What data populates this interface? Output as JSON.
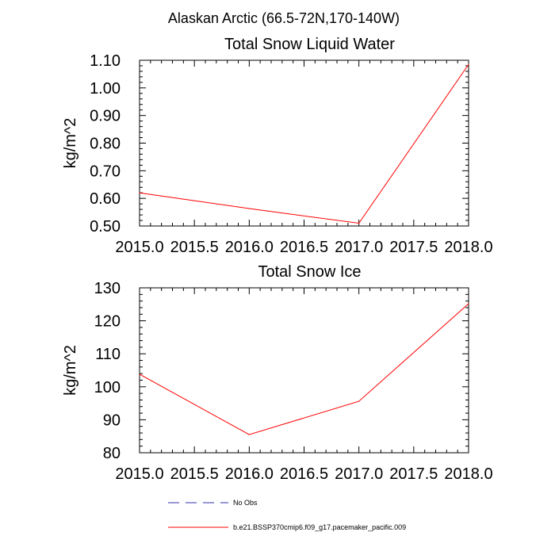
{
  "figure": {
    "suptitle": "Alaskan Arctic (66.5-72N,170-140W)"
  },
  "chart_data": [
    {
      "type": "line",
      "title": "Total Snow Liquid Water",
      "xlabel": "",
      "ylabel": "kg/m^2",
      "xlim": [
        2015.0,
        2018.0
      ],
      "ylim": [
        0.5,
        1.1
      ],
      "xticks": [
        "2015.0",
        "2015.5",
        "2016.0",
        "2016.5",
        "2017.0",
        "2017.5",
        "2018.0"
      ],
      "yticks": [
        "0.50",
        "0.60",
        "0.70",
        "0.80",
        "0.90",
        "1.00",
        "1.10"
      ],
      "x": [
        2015.0,
        2016.0,
        2017.0,
        2018.0
      ],
      "series": [
        {
          "name": "b.e21.BSSP370cmip6.f09_g17.pacemaker_pacific.009",
          "color": "#ff0000",
          "values": [
            0.62,
            0.563,
            0.51,
            1.085
          ]
        }
      ]
    },
    {
      "type": "line",
      "title": "Total Snow Ice",
      "xlabel": "",
      "ylabel": "kg/m^2",
      "xlim": [
        2015.0,
        2018.0
      ],
      "ylim": [
        80,
        130
      ],
      "xticks": [
        "2015.0",
        "2015.5",
        "2016.0",
        "2016.5",
        "2017.0",
        "2017.5",
        "2018.0"
      ],
      "yticks": [
        "80",
        "90",
        "100",
        "110",
        "120",
        "130"
      ],
      "x": [
        2015.0,
        2016.0,
        2017.0,
        2018.0
      ],
      "series": [
        {
          "name": "b.e21.BSSP370cmip6.f09_g17.pacemaker_pacific.009",
          "color": "#ff0000",
          "values": [
            103.8,
            85.5,
            95.6,
            125.2
          ]
        }
      ]
    }
  ],
  "legend": {
    "items": [
      {
        "label": "No Obs",
        "color": "#3333aa",
        "style": "dashed"
      },
      {
        "label": "b.e21.BSSP370cmip6.f09_g17.pacemaker_pacific.009",
        "color": "#ff0000",
        "style": "solid"
      }
    ]
  }
}
